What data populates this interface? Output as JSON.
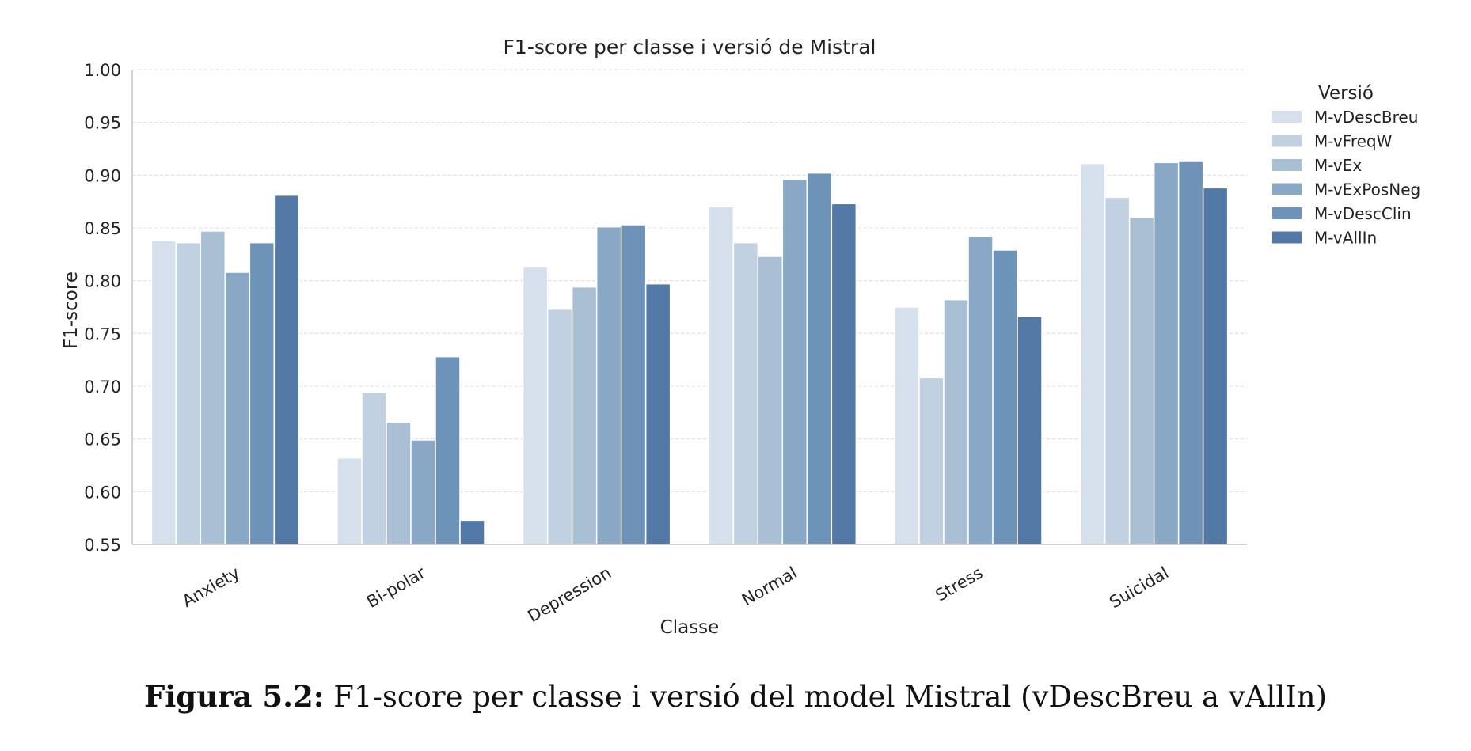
{
  "chart_data": {
    "type": "bar",
    "title": "F1-score per classe i versió de Mistral",
    "xlabel": "Classe",
    "ylabel": "F1-score",
    "ylim": [
      0.55,
      1.0
    ],
    "yticks": [
      "0.55",
      "0.60",
      "0.65",
      "0.70",
      "0.75",
      "0.80",
      "0.85",
      "0.90",
      "0.95",
      "1.00"
    ],
    "grid": true,
    "categories": [
      "Anxiety",
      "Bi-polar",
      "Depression",
      "Normal",
      "Stress",
      "Suicidal"
    ],
    "legend": {
      "title": "Versió",
      "placement": "right"
    },
    "series": [
      {
        "name": "M-vDescBreu",
        "color": "#d6e0ec",
        "values": [
          0.838,
          0.632,
          0.813,
          0.87,
          0.775,
          0.911
        ]
      },
      {
        "name": "M-vFreqW",
        "color": "#c1d1e1",
        "values": [
          0.836,
          0.694,
          0.773,
          0.836,
          0.708,
          0.879
        ]
      },
      {
        "name": "M-vEx",
        "color": "#a8bfd4",
        "values": [
          0.847,
          0.666,
          0.794,
          0.823,
          0.782,
          0.86
        ]
      },
      {
        "name": "M-vExPosNeg",
        "color": "#88a8c6",
        "values": [
          0.808,
          0.649,
          0.851,
          0.896,
          0.842,
          0.912
        ]
      },
      {
        "name": "M-vDescClin",
        "color": "#6d94b8",
        "values": [
          0.836,
          0.728,
          0.853,
          0.902,
          0.829,
          0.913
        ]
      },
      {
        "name": "M-vAllIn",
        "color": "#5279a6",
        "values": [
          0.881,
          0.573,
          0.797,
          0.873,
          0.766,
          0.888
        ]
      }
    ]
  },
  "caption": {
    "label": "Figura 5.2:",
    "text": "F1-score per classe i versió del model Mistral (vDescBreu a vAllIn)"
  }
}
